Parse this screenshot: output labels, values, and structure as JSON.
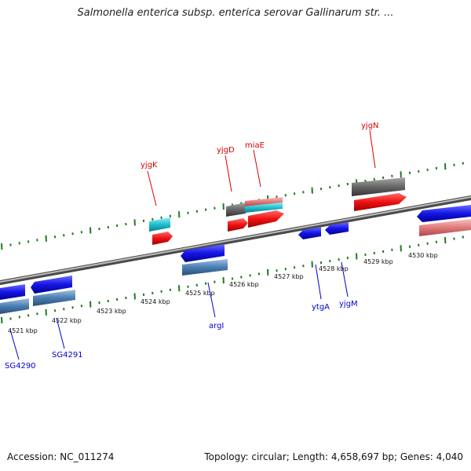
{
  "title": "Salmonella enterica subsp. enterica serovar Gallinarum str. ...",
  "footer": {
    "accession": "Accession: NC_011274",
    "topology": "Topology: circular; Length: 4,658,697 bp; Genes: 4,040"
  },
  "colors": {
    "backbone": "#8a8a8a",
    "tick": "#1f7a1f",
    "plus_label": "#dd0000",
    "minus_label": "#0000cc",
    "gene_red": "#ee1111",
    "gene_blue": "#1515e6",
    "gene_steel": "#4a7eb3",
    "gene_gray": "#666666",
    "gene_cyan": "#22bfd0",
    "gene_salmon": "#e07a7a"
  },
  "ruler": {
    "kbp_labels": [
      "4521 kbp",
      "4522 kbp",
      "4523 kbp",
      "4524 kbp",
      "4525 kbp",
      "4526 kbp",
      "4527 kbp",
      "4528 kbp",
      "4529 kbp",
      "4530 kbp"
    ]
  },
  "genes": {
    "yjgK": "yjgK",
    "yjgD": "yjgD",
    "miaE": "miaE",
    "yjgN": "yjgN",
    "argI": "argI",
    "ytgA": "ytgA",
    "yjgM": "yjgM",
    "SG4290": "SG4290",
    "SG4291": "SG4291"
  }
}
